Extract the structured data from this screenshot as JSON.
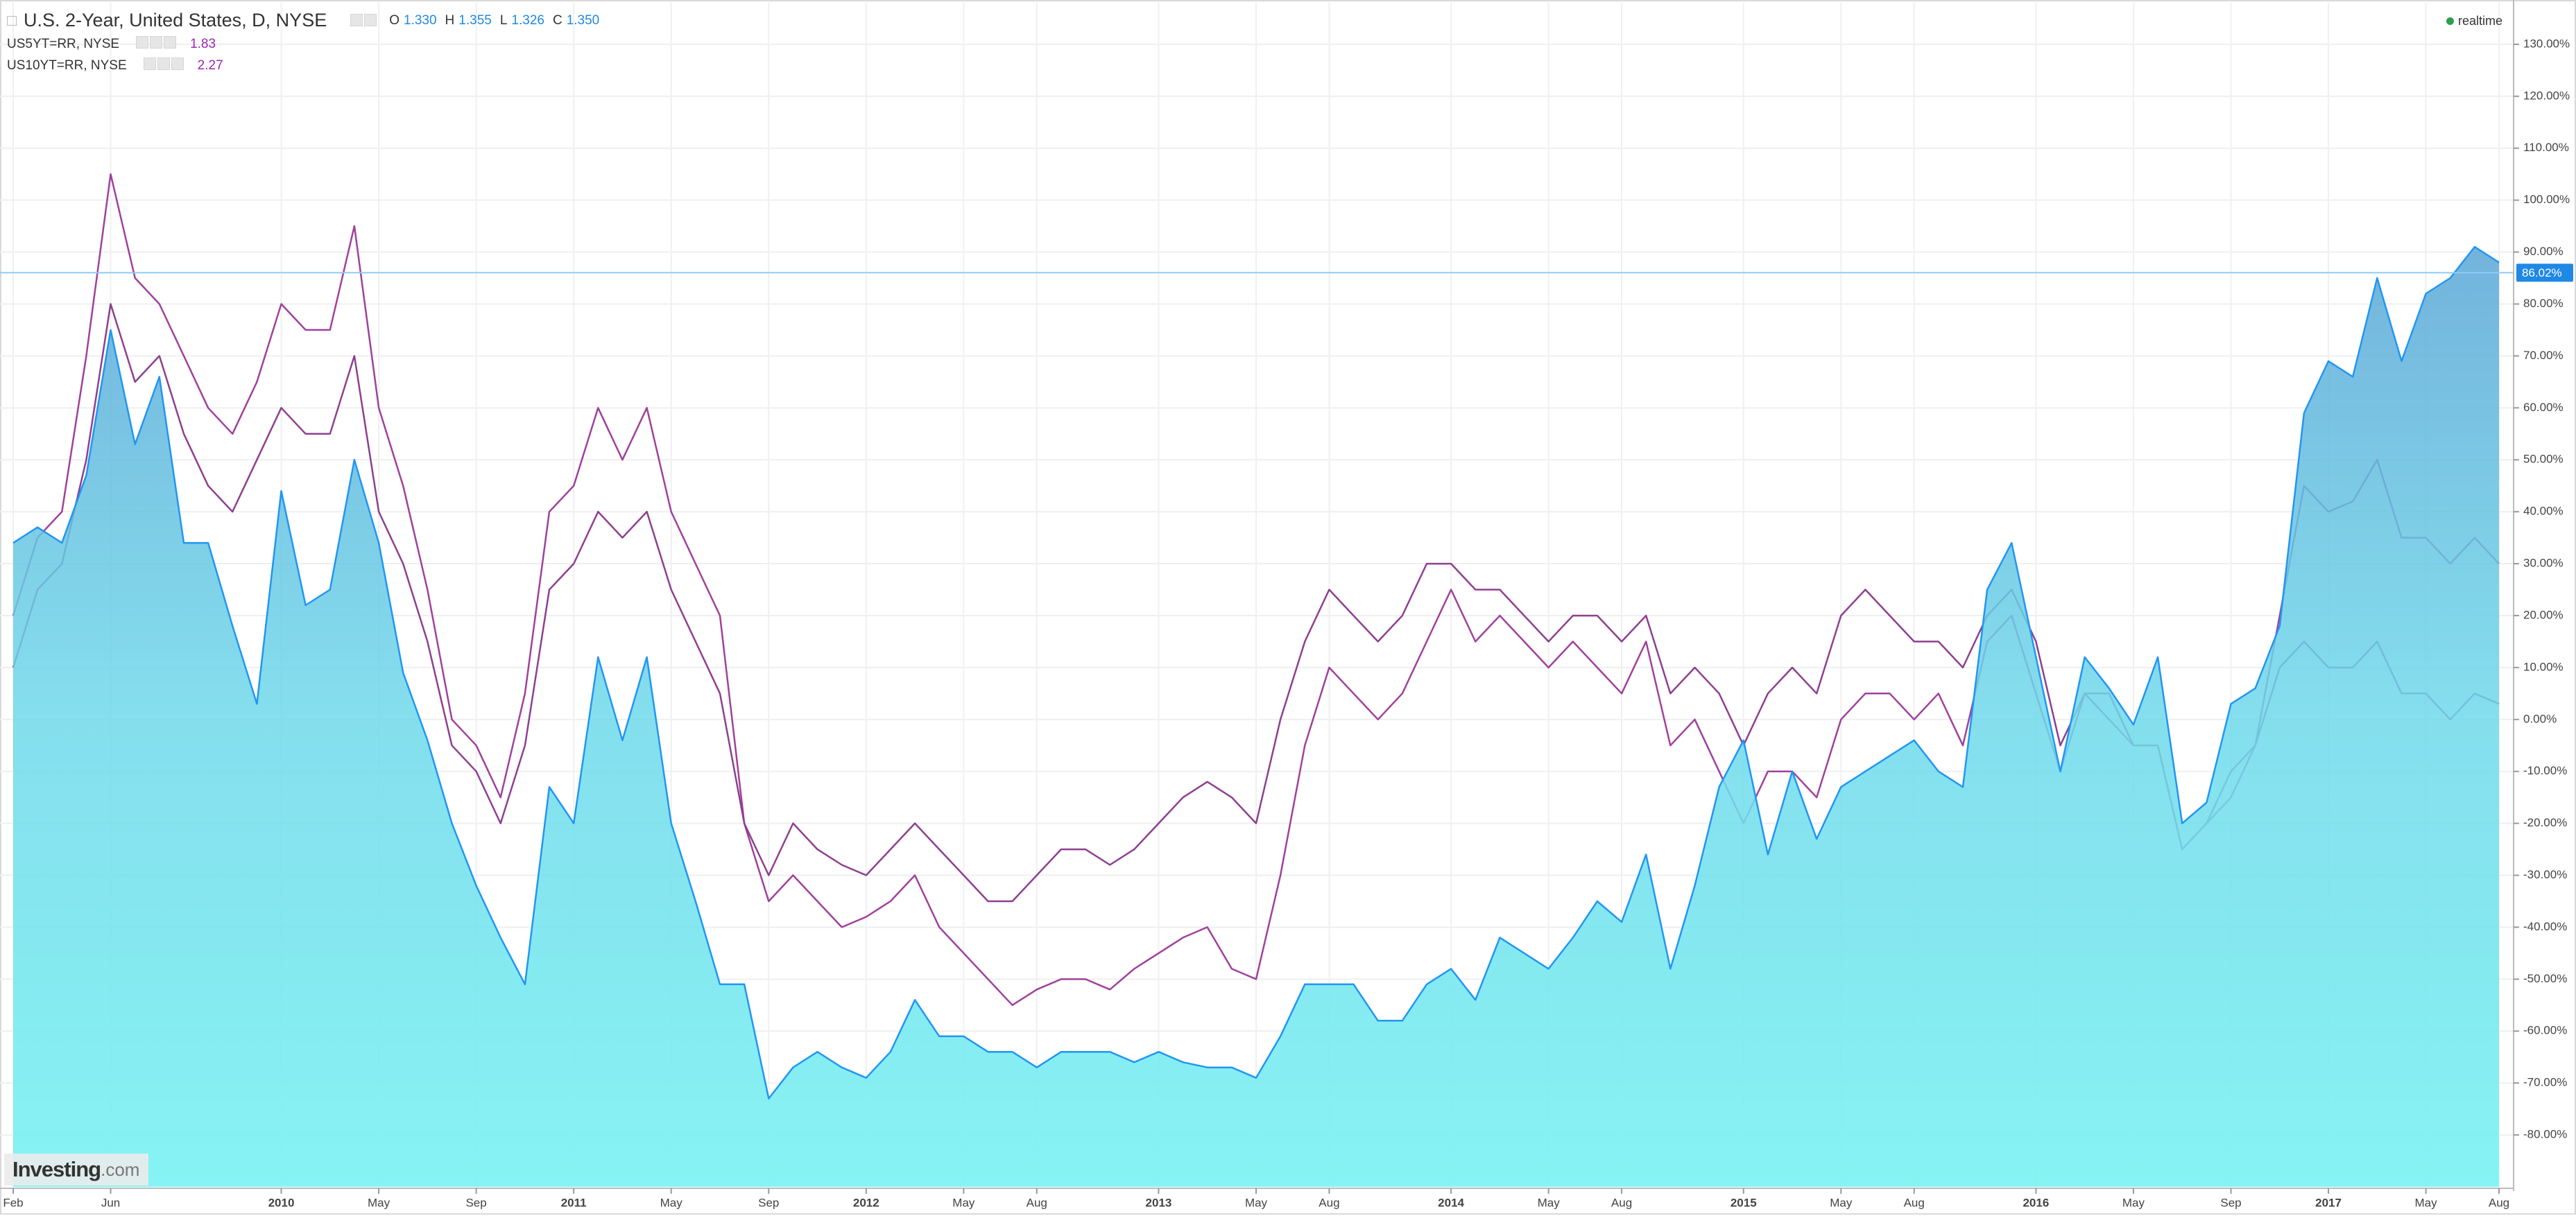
{
  "chart_data": {
    "type": "line",
    "categories": [
      "Feb",
      null,
      null,
      null,
      "Jun",
      null,
      null,
      null,
      null,
      null,
      null,
      "2010",
      null,
      null,
      null,
      "May",
      null,
      null,
      null,
      "Sep",
      null,
      null,
      null,
      "2011",
      null,
      null,
      null,
      "May",
      null,
      null,
      null,
      "Sep",
      null,
      null,
      null,
      "2012",
      null,
      null,
      null,
      "May",
      null,
      null,
      "Aug",
      null,
      null,
      null,
      null,
      "2013",
      null,
      null,
      null,
      "May",
      null,
      null,
      "Aug",
      null,
      null,
      null,
      null,
      "2014",
      null,
      null,
      null,
      "May",
      null,
      null,
      "Aug",
      null,
      null,
      null,
      null,
      "2015",
      null,
      null,
      null,
      "May",
      null,
      null,
      "Aug",
      null,
      null,
      null,
      null,
      "2016",
      null,
      null,
      null,
      "May",
      null,
      null,
      null,
      "Sep",
      null,
      null,
      null,
      "2017",
      null,
      null,
      null,
      "May",
      null,
      null,
      "Aug"
    ],
    "series": [
      {
        "name": "U.S. 2-Year, United States, D, NYSE",
        "color": "#2196f3",
        "fill": "#80f3f3",
        "ohlc": [
          {
            "key": "O",
            "text": "1.330"
          },
          {
            "key": "H",
            "text": "1.355"
          },
          {
            "key": "L",
            "text": "1.326"
          },
          {
            "key": "C",
            "text": "1.350"
          }
        ],
        "values": [
          34,
          37,
          34,
          47,
          75,
          53,
          66,
          34,
          34,
          18,
          3,
          44,
          22,
          25,
          50,
          34,
          9,
          -4,
          -20,
          -32,
          -42,
          -51,
          -13,
          -20,
          12,
          -4,
          12,
          -20,
          -35,
          -51,
          -51,
          -73,
          -67,
          -64,
          -67,
          -69,
          -64,
          -54,
          -61,
          -61,
          -64,
          -64,
          -67,
          -64,
          -64,
          -64,
          -66,
          -64,
          -66,
          -67,
          -67,
          -69,
          -61,
          -51,
          -51,
          -51,
          -58,
          -58,
          -51,
          -48,
          -54,
          -42,
          -45,
          -48,
          -42,
          -35,
          -39,
          -26,
          -48,
          -32,
          -13,
          -4,
          -26,
          -10,
          -23,
          -13,
          -10,
          -7,
          -4,
          -10,
          -13,
          25,
          34,
          12,
          -10,
          12,
          6,
          -1,
          12,
          -20,
          -16,
          3,
          6,
          18,
          59,
          69,
          66,
          85,
          69,
          82,
          85,
          91,
          88
        ]
      },
      {
        "name": "US5YT=RR, NYSE",
        "color": "#a0409c",
        "last": "1.83",
        "values": [
          20,
          35,
          40,
          70,
          105,
          85,
          80,
          70,
          60,
          55,
          65,
          80,
          75,
          75,
          95,
          60,
          45,
          25,
          0,
          -5,
          -15,
          5,
          40,
          45,
          60,
          50,
          60,
          40,
          30,
          20,
          -20,
          -35,
          -30,
          -35,
          -40,
          -38,
          -35,
          -30,
          -40,
          -45,
          -50,
          -55,
          -52,
          -50,
          -50,
          -52,
          -48,
          -45,
          -42,
          -40,
          -48,
          -50,
          -30,
          -5,
          10,
          5,
          0,
          5,
          15,
          25,
          15,
          20,
          15,
          10,
          15,
          10,
          5,
          15,
          -5,
          0,
          -10,
          -20,
          -10,
          -10,
          -15,
          0,
          5,
          5,
          0,
          5,
          -5,
          15,
          20,
          5,
          -10,
          5,
          0,
          -5,
          -5,
          -25,
          -20,
          -15,
          -5,
          20,
          45,
          40,
          42,
          50,
          35,
          35,
          30,
          35,
          30
        ]
      },
      {
        "name": "US10YT=RR, NYSE",
        "color": "#8e3f90",
        "last": "2.27",
        "values": [
          10,
          25,
          30,
          50,
          80,
          65,
          70,
          55,
          45,
          40,
          50,
          60,
          55,
          55,
          70,
          40,
          30,
          15,
          -5,
          -10,
          -20,
          -5,
          25,
          30,
          40,
          35,
          40,
          25,
          15,
          5,
          -20,
          -30,
          -20,
          -25,
          -28,
          -30,
          -25,
          -20,
          -25,
          -30,
          -35,
          -35,
          -30,
          -25,
          -25,
          -28,
          -25,
          -20,
          -15,
          -12,
          -15,
          -20,
          0,
          15,
          25,
          20,
          15,
          20,
          30,
          30,
          25,
          25,
          20,
          15,
          20,
          20,
          15,
          20,
          5,
          10,
          5,
          -5,
          5,
          10,
          5,
          20,
          25,
          20,
          15,
          15,
          10,
          20,
          25,
          15,
          -5,
          5,
          5,
          -5,
          -5,
          -25,
          -20,
          -10,
          -5,
          10,
          15,
          10,
          10,
          15,
          5,
          5,
          0,
          5,
          3
        ]
      }
    ],
    "ylim": [
      -90,
      138
    ],
    "yticks": [
      {
        "value": -80,
        "label": "-80.00%"
      },
      {
        "value": -70,
        "label": "-70.00%"
      },
      {
        "value": -60,
        "label": "-60.00%"
      },
      {
        "value": -50,
        "label": "-50.00%"
      },
      {
        "value": -40,
        "label": "-40.00%"
      },
      {
        "value": -30,
        "label": "-30.00%"
      },
      {
        "value": -20,
        "label": "-20.00%"
      },
      {
        "value": -10,
        "label": "-10.00%"
      },
      {
        "value": 0,
        "label": "0.00%"
      },
      {
        "value": 10,
        "label": "10.00%"
      },
      {
        "value": 20,
        "label": "20.00%"
      },
      {
        "value": 30,
        "label": "30.00%"
      },
      {
        "value": 40,
        "label": "40.00%"
      },
      {
        "value": 50,
        "label": "50.00%"
      },
      {
        "value": 60,
        "label": "60.00%"
      },
      {
        "value": 70,
        "label": "70.00%"
      },
      {
        "value": 80,
        "label": "80.00%"
      },
      {
        "value": 90,
        "label": "90.00%"
      },
      {
        "value": 100,
        "label": "100.00%"
      },
      {
        "value": 110,
        "label": "110.00%"
      },
      {
        "value": 120,
        "label": "120.00%"
      },
      {
        "value": 130,
        "label": "130.00%"
      }
    ],
    "current": {
      "value": 86.02,
      "label": "86.02%"
    },
    "grid": true,
    "status": "realtime",
    "brand": [
      "Investing",
      ".com"
    ]
  }
}
